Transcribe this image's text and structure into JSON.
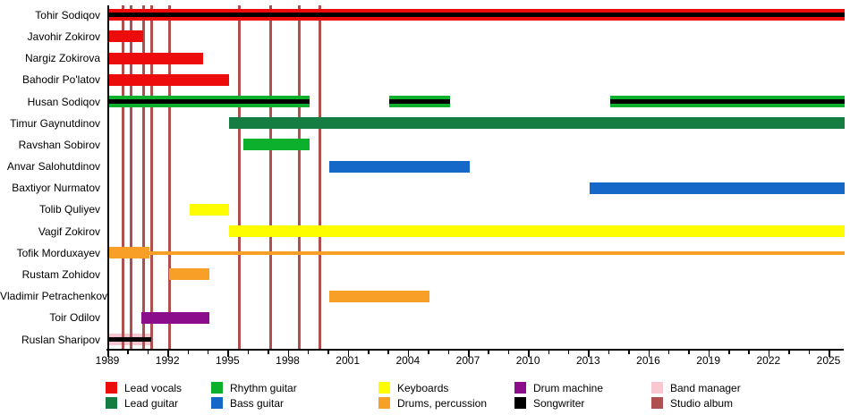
{
  "chart_data": {
    "type": "bar",
    "subtype": "band-member-timeline",
    "title": "",
    "xlabel": "",
    "ylabel": "",
    "x_axis": {
      "min": 1989,
      "max": 2025.7,
      "major_tick_interval": 3,
      "minor_tick_interval": 1,
      "major_ticks": [
        1989,
        1992,
        1995,
        1998,
        2001,
        2004,
        2007,
        2010,
        2013,
        2016,
        2019,
        2022,
        2025
      ]
    },
    "members": [
      {
        "name": "Tohir Sodiqov",
        "bars": [
          {
            "role": "lead_vocals",
            "start": 1989,
            "end": 2025.7,
            "songwriter": true
          }
        ]
      },
      {
        "name": "Javohir Zokirov",
        "bars": [
          {
            "role": "lead_vocals",
            "start": 1989,
            "end": 1990.7
          }
        ]
      },
      {
        "name": "Nargiz Zokirova",
        "bars": [
          {
            "role": "lead_vocals",
            "start": 1989,
            "end": 1993.7
          }
        ]
      },
      {
        "name": "Bahodir Po'latov",
        "bars": [
          {
            "role": "lead_vocals",
            "start": 1989,
            "end": 1995
          }
        ]
      },
      {
        "name": "Husan Sodiqov",
        "bars": [
          {
            "role": "rhythm_guitar",
            "start": 1989,
            "end": 1999,
            "songwriter": true
          },
          {
            "role": "rhythm_guitar",
            "start": 2003,
            "end": 2006,
            "songwriter": true
          },
          {
            "role": "rhythm_guitar",
            "start": 2014,
            "end": 2025.7,
            "songwriter": true
          }
        ]
      },
      {
        "name": "Timur Gaynutdinov",
        "bars": [
          {
            "role": "lead_guitar",
            "start": 1995,
            "end": 2025.7
          }
        ]
      },
      {
        "name": "Ravshan Sobirov",
        "bars": [
          {
            "role": "rhythm_guitar",
            "start": 1995.7,
            "end": 1999
          }
        ]
      },
      {
        "name": "Anvar Salohutdinov",
        "bars": [
          {
            "role": "bass_guitar",
            "start": 2000,
            "end": 2007
          }
        ]
      },
      {
        "name": "Baxtiyor Nurmatov",
        "bars": [
          {
            "role": "bass_guitar",
            "start": 2013,
            "end": 2025.7
          }
        ]
      },
      {
        "name": "Tolib Quliyev",
        "bars": [
          {
            "role": "keyboards",
            "start": 1993,
            "end": 1995
          }
        ]
      },
      {
        "name": "Vagif Zokirov",
        "bars": [
          {
            "role": "keyboards",
            "start": 1995,
            "end": 2025.7
          }
        ]
      },
      {
        "name": "Tofik Morduxayev",
        "bars": [
          {
            "role": "drums_percussion",
            "start": 1989,
            "end": 1991
          },
          {
            "role": "drums_percussion",
            "start": 1991,
            "end": 2025.7,
            "thin": true
          }
        ]
      },
      {
        "name": "Rustam Zohidov",
        "bars": [
          {
            "role": "drums_percussion",
            "start": 1992,
            "end": 1994
          }
        ]
      },
      {
        "name": "Vladimir Petrachenkov",
        "bars": [
          {
            "role": "drums_percussion",
            "start": 2000,
            "end": 2005
          }
        ]
      },
      {
        "name": "Toir Odilov",
        "bars": [
          {
            "role": "drum_machine",
            "start": 1990.6,
            "end": 1994
          }
        ]
      },
      {
        "name": "Ruslan Sharipov",
        "bars": [
          {
            "role": "band_manager",
            "start": 1989,
            "end": 1991.1,
            "songwriter": true
          }
        ]
      }
    ],
    "albums": [
      1989.7,
      1990.1,
      1990.7,
      1991.1,
      1992.0,
      1995.5,
      1997.05,
      1998.5,
      1999.5
    ],
    "legend": [
      {
        "label": "Lead vocals",
        "role": "lead_vocals"
      },
      {
        "label": "Lead guitar",
        "role": "lead_guitar"
      },
      {
        "label": "Rhythm guitar",
        "role": "rhythm_guitar"
      },
      {
        "label": "Bass guitar",
        "role": "bass_guitar"
      },
      {
        "label": "Keyboards",
        "role": "keyboards"
      },
      {
        "label": "Drums, percussion",
        "role": "drums_percussion"
      },
      {
        "label": "Drum machine",
        "role": "drum_machine"
      },
      {
        "label": "Songwriter",
        "role": "songwriter"
      },
      {
        "label": "Band manager",
        "role": "band_manager"
      },
      {
        "label": "Studio album",
        "role": "studio_album"
      }
    ],
    "colors": {
      "lead_vocals": "#ec0c0c",
      "lead_guitar": "#157c42",
      "rhythm_guitar": "#0db02c",
      "bass_guitar": "#1568c8",
      "keyboards": "#fdfd00",
      "drums_percussion": "#f89f28",
      "drum_machine": "#8b0d8b",
      "songwriter": "#000000",
      "band_manager": "#f8c7cf",
      "studio_album": "#af5050"
    }
  }
}
